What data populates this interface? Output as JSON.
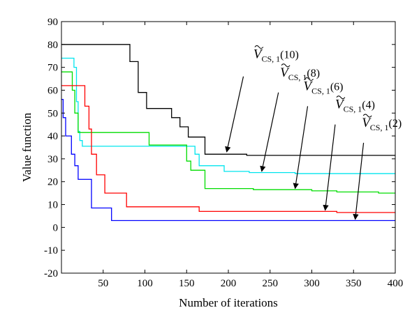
{
  "chart_data": {
    "type": "line",
    "title": "",
    "xlabel": "Number of iterations",
    "ylabel": "Value function",
    "xlim": [
      0,
      400
    ],
    "ylim": [
      -20,
      90
    ],
    "xticks": [
      50,
      100,
      150,
      200,
      250,
      300,
      350,
      400
    ],
    "yticks": [
      -20,
      -10,
      0,
      10,
      20,
      30,
      40,
      50,
      60,
      70,
      80,
      90
    ],
    "grid": false,
    "series": [
      {
        "color": "#000000",
        "points": [
          [
            0,
            80
          ],
          [
            82,
            80
          ],
          [
            82,
            72.5
          ],
          [
            92,
            72.5
          ],
          [
            92,
            59
          ],
          [
            102,
            59
          ],
          [
            102,
            52
          ],
          [
            132,
            52
          ],
          [
            132,
            48
          ],
          [
            142,
            48
          ],
          [
            142,
            44
          ],
          [
            152,
            44
          ],
          [
            152,
            39.5
          ],
          [
            172,
            39.5
          ],
          [
            172,
            32
          ],
          [
            222,
            32
          ],
          [
            222,
            31.5
          ],
          [
            400,
            31.5
          ]
        ]
      },
      {
        "color": "#00e5ee",
        "points": [
          [
            0,
            74
          ],
          [
            15,
            74
          ],
          [
            15,
            70
          ],
          [
            18,
            70
          ],
          [
            18,
            55
          ],
          [
            20,
            55
          ],
          [
            20,
            42
          ],
          [
            22,
            42
          ],
          [
            22,
            38
          ],
          [
            25,
            38
          ],
          [
            25,
            35.5
          ],
          [
            160,
            35.5
          ],
          [
            160,
            32
          ],
          [
            165,
            32
          ],
          [
            165,
            27
          ],
          [
            195,
            27
          ],
          [
            195,
            24.5
          ],
          [
            225,
            24.5
          ],
          [
            225,
            24
          ],
          [
            280,
            24
          ],
          [
            280,
            23.5
          ],
          [
            400,
            23.5
          ]
        ]
      },
      {
        "color": "#00dd00",
        "points": [
          [
            0,
            68
          ],
          [
            13,
            68
          ],
          [
            13,
            60
          ],
          [
            16,
            60
          ],
          [
            16,
            50
          ],
          [
            20,
            50
          ],
          [
            20,
            41.5
          ],
          [
            105,
            41.5
          ],
          [
            105,
            36
          ],
          [
            150,
            36
          ],
          [
            150,
            29
          ],
          [
            155,
            29
          ],
          [
            155,
            25
          ],
          [
            172,
            25
          ],
          [
            172,
            17
          ],
          [
            230,
            17
          ],
          [
            230,
            16.5
          ],
          [
            300,
            16.5
          ],
          [
            300,
            16
          ],
          [
            330,
            16
          ],
          [
            330,
            15.5
          ],
          [
            380,
            15.5
          ],
          [
            380,
            15
          ],
          [
            400,
            15
          ]
        ]
      },
      {
        "color": "#ff0000",
        "points": [
          [
            0,
            62
          ],
          [
            28,
            62
          ],
          [
            28,
            53
          ],
          [
            33,
            53
          ],
          [
            33,
            43
          ],
          [
            36,
            43
          ],
          [
            36,
            32
          ],
          [
            42,
            32
          ],
          [
            42,
            23
          ],
          [
            52,
            23
          ],
          [
            52,
            15
          ],
          [
            78,
            15
          ],
          [
            78,
            9
          ],
          [
            165,
            9
          ],
          [
            165,
            7
          ],
          [
            330,
            7
          ],
          [
            330,
            6.5
          ],
          [
            400,
            6.5
          ]
        ]
      },
      {
        "color": "#0000ff",
        "points": [
          [
            0,
            56
          ],
          [
            2,
            56
          ],
          [
            2,
            48
          ],
          [
            5,
            48
          ],
          [
            5,
            40
          ],
          [
            12,
            40
          ],
          [
            12,
            32
          ],
          [
            16,
            32
          ],
          [
            16,
            27
          ],
          [
            20,
            27
          ],
          [
            20,
            21
          ],
          [
            36,
            21
          ],
          [
            36,
            8.5
          ],
          [
            60,
            8.5
          ],
          [
            60,
            3
          ],
          [
            400,
            3
          ]
        ]
      }
    ],
    "annotations": [
      {
        "var": "V",
        "sub": "CS, 1",
        "arg": "(10)",
        "text_at": [
          230,
          74
        ],
        "arrow_from": [
          218,
          66
        ],
        "arrow_to": [
          198,
          33
        ]
      },
      {
        "var": "V",
        "sub": "CS, 1",
        "arg": "(8)",
        "text_at": [
          262,
          66
        ],
        "arrow_from": [
          260,
          59
        ],
        "arrow_to": [
          240,
          24.5
        ]
      },
      {
        "var": "V",
        "sub": "CS, 1",
        "arg": "(6)",
        "text_at": [
          290,
          60
        ],
        "arrow_from": [
          295,
          53
        ],
        "arrow_to": [
          280,
          17
        ]
      },
      {
        "var": "V",
        "sub": "CS, 1",
        "arg": "(4)",
        "text_at": [
          328,
          52
        ],
        "arrow_from": [
          328,
          45
        ],
        "arrow_to": [
          316,
          7.5
        ]
      },
      {
        "var": "V",
        "sub": "CS, 1",
        "arg": "(2)",
        "text_at": [
          360,
          44
        ],
        "arrow_from": [
          362,
          37
        ],
        "arrow_to": [
          352,
          3.5
        ]
      }
    ]
  }
}
